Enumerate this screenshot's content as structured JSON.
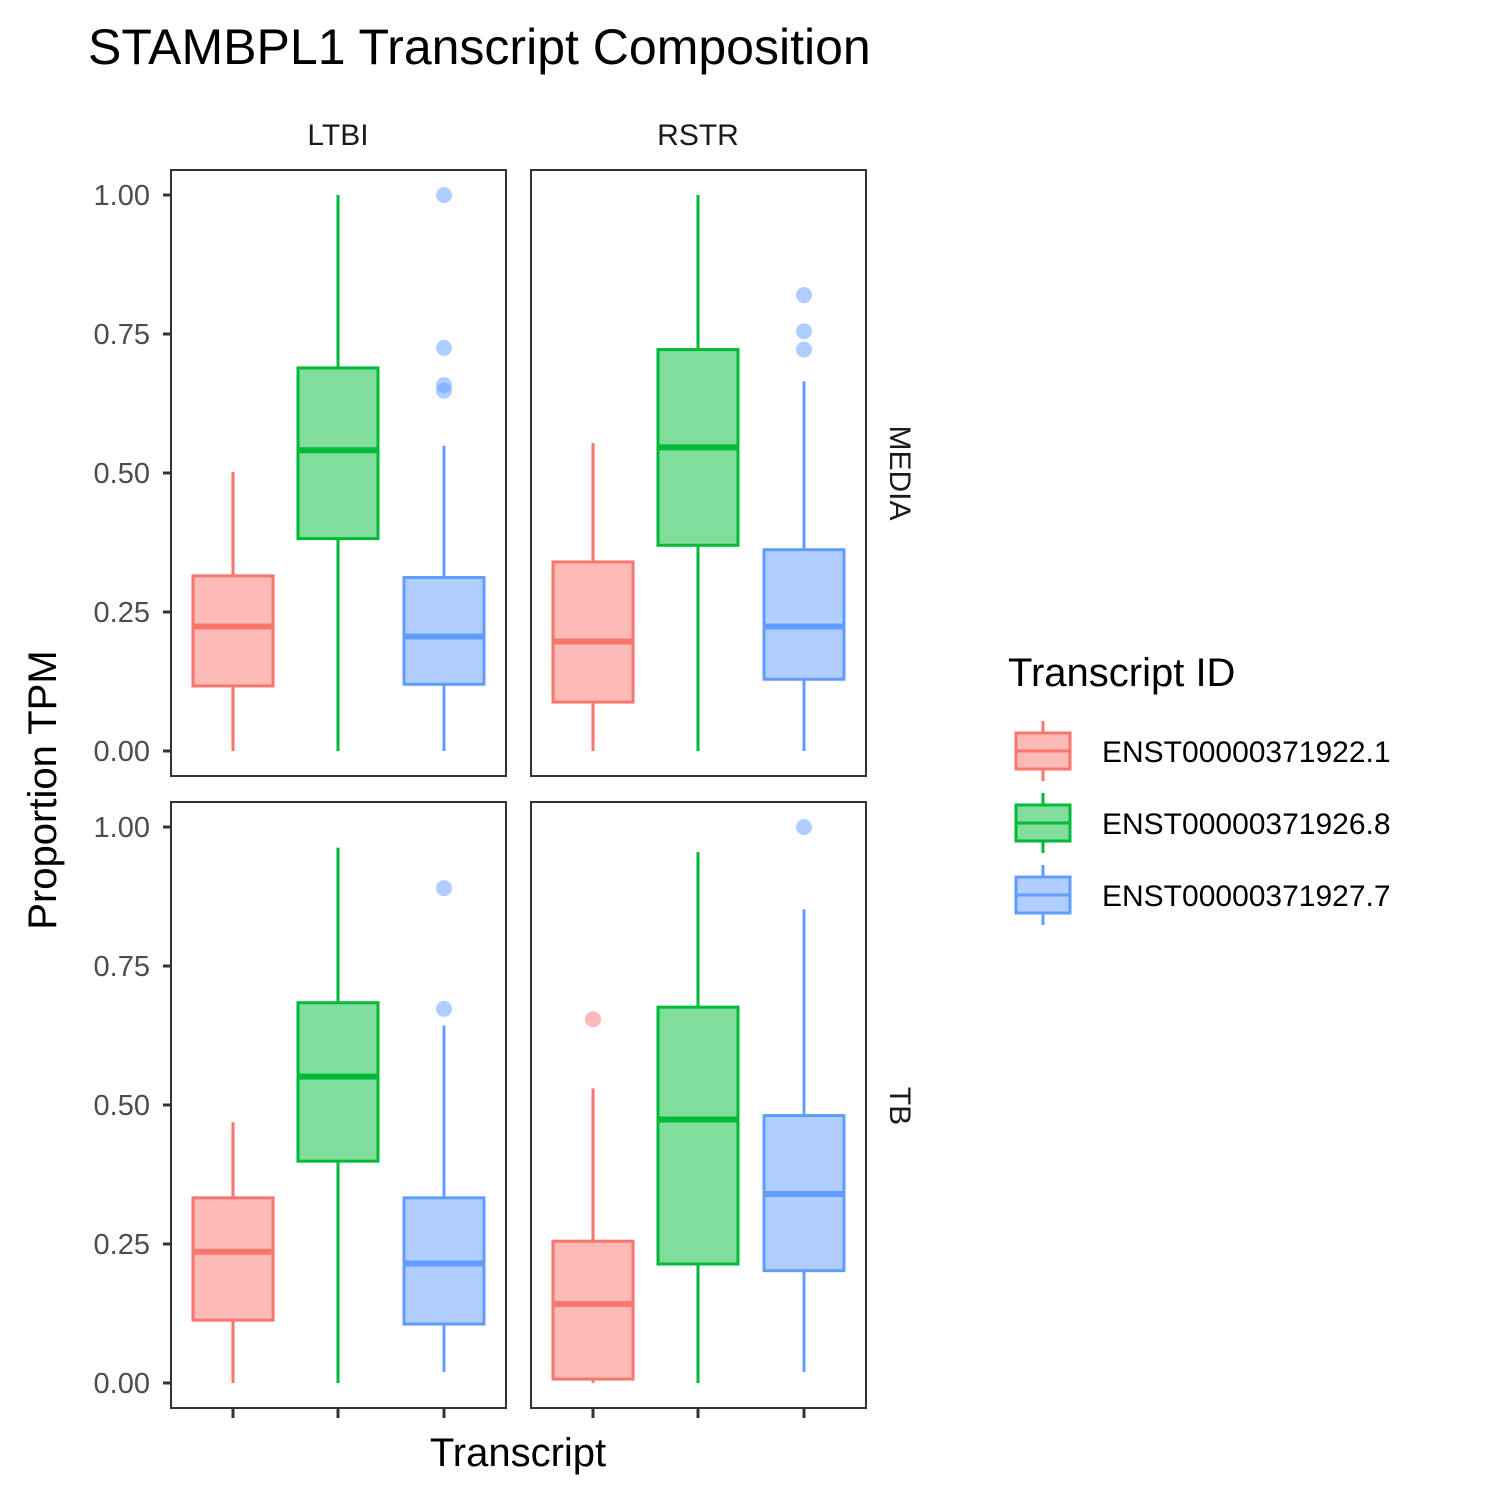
{
  "chart_data": {
    "type": "boxplot",
    "title": "STAMBPL1 Transcript Composition",
    "xlabel": "Transcript",
    "ylabel": "Proportion TPM",
    "ylim": [
      -0.045,
      1.045
    ],
    "y_ticks": [
      0,
      0.25,
      0.5,
      0.75,
      1
    ],
    "y_tick_labels": [
      "0.00",
      "0.25",
      "0.50",
      "0.75",
      "1.00"
    ],
    "grid": false,
    "legend": {
      "title": "Transcript ID",
      "placement": "right",
      "entries": [
        "ENST00000371922.1",
        "ENST00000371926.8",
        "ENST00000371927.7"
      ]
    },
    "colors": {
      "ENST00000371922.1": "#F8766D",
      "ENST00000371926.8": "#00BA38",
      "ENST00000371927.7": "#619CFF"
    },
    "facet_columns": [
      "LTBI",
      "RSTR"
    ],
    "facet_rows": [
      "MEDIA",
      "TB"
    ],
    "panels": [
      {
        "column": "LTBI",
        "row": "MEDIA",
        "boxes": [
          {
            "transcript": "ENST00000371922.1",
            "whisker_low": 0.0,
            "q1": 0.117,
            "median": 0.224,
            "q3": 0.315,
            "whisker_high": 0.502,
            "outliers": []
          },
          {
            "transcript": "ENST00000371926.8",
            "whisker_low": 0.0,
            "q1": 0.382,
            "median": 0.541,
            "q3": 0.689,
            "whisker_high": 1.0,
            "outliers": []
          },
          {
            "transcript": "ENST00000371927.7",
            "whisker_low": 0.0,
            "q1": 0.12,
            "median": 0.206,
            "q3": 0.312,
            "whisker_high": 0.549,
            "outliers": [
              0.648,
              0.658,
              0.725,
              1.0
            ]
          }
        ]
      },
      {
        "column": "RSTR",
        "row": "MEDIA",
        "boxes": [
          {
            "transcript": "ENST00000371922.1",
            "whisker_low": 0.0,
            "q1": 0.088,
            "median": 0.197,
            "q3": 0.34,
            "whisker_high": 0.554,
            "outliers": []
          },
          {
            "transcript": "ENST00000371926.8",
            "whisker_low": 0.0,
            "q1": 0.37,
            "median": 0.546,
            "q3": 0.722,
            "whisker_high": 1.0,
            "outliers": []
          },
          {
            "transcript": "ENST00000371927.7",
            "whisker_low": 0.0,
            "q1": 0.129,
            "median": 0.224,
            "q3": 0.362,
            "whisker_high": 0.665,
            "outliers": [
              0.722,
              0.755,
              0.82
            ]
          }
        ]
      },
      {
        "column": "LTBI",
        "row": "TB",
        "boxes": [
          {
            "transcript": "ENST00000371922.1",
            "whisker_low": 0.0,
            "q1": 0.113,
            "median": 0.236,
            "q3": 0.333,
            "whisker_high": 0.469,
            "outliers": []
          },
          {
            "transcript": "ENST00000371926.8",
            "whisker_low": 0.0,
            "q1": 0.399,
            "median": 0.551,
            "q3": 0.684,
            "whisker_high": 0.963,
            "outliers": []
          },
          {
            "transcript": "ENST00000371927.7",
            "whisker_low": 0.02,
            "q1": 0.106,
            "median": 0.215,
            "q3": 0.333,
            "whisker_high": 0.643,
            "outliers": [
              0.673,
              0.89
            ]
          }
        ]
      },
      {
        "column": "RSTR",
        "row": "TB",
        "boxes": [
          {
            "transcript": "ENST00000371922.1",
            "whisker_low": 0.0,
            "q1": 0.007,
            "median": 0.142,
            "q3": 0.255,
            "whisker_high": 0.53,
            "outliers": [
              0.654
            ]
          },
          {
            "transcript": "ENST00000371926.8",
            "whisker_low": 0.0,
            "q1": 0.214,
            "median": 0.474,
            "q3": 0.676,
            "whisker_high": 0.955,
            "outliers": []
          },
          {
            "transcript": "ENST00000371927.7",
            "whisker_low": 0.02,
            "q1": 0.202,
            "median": 0.34,
            "q3": 0.481,
            "whisker_high": 0.852,
            "outliers": [
              1.0
            ]
          }
        ]
      }
    ]
  }
}
